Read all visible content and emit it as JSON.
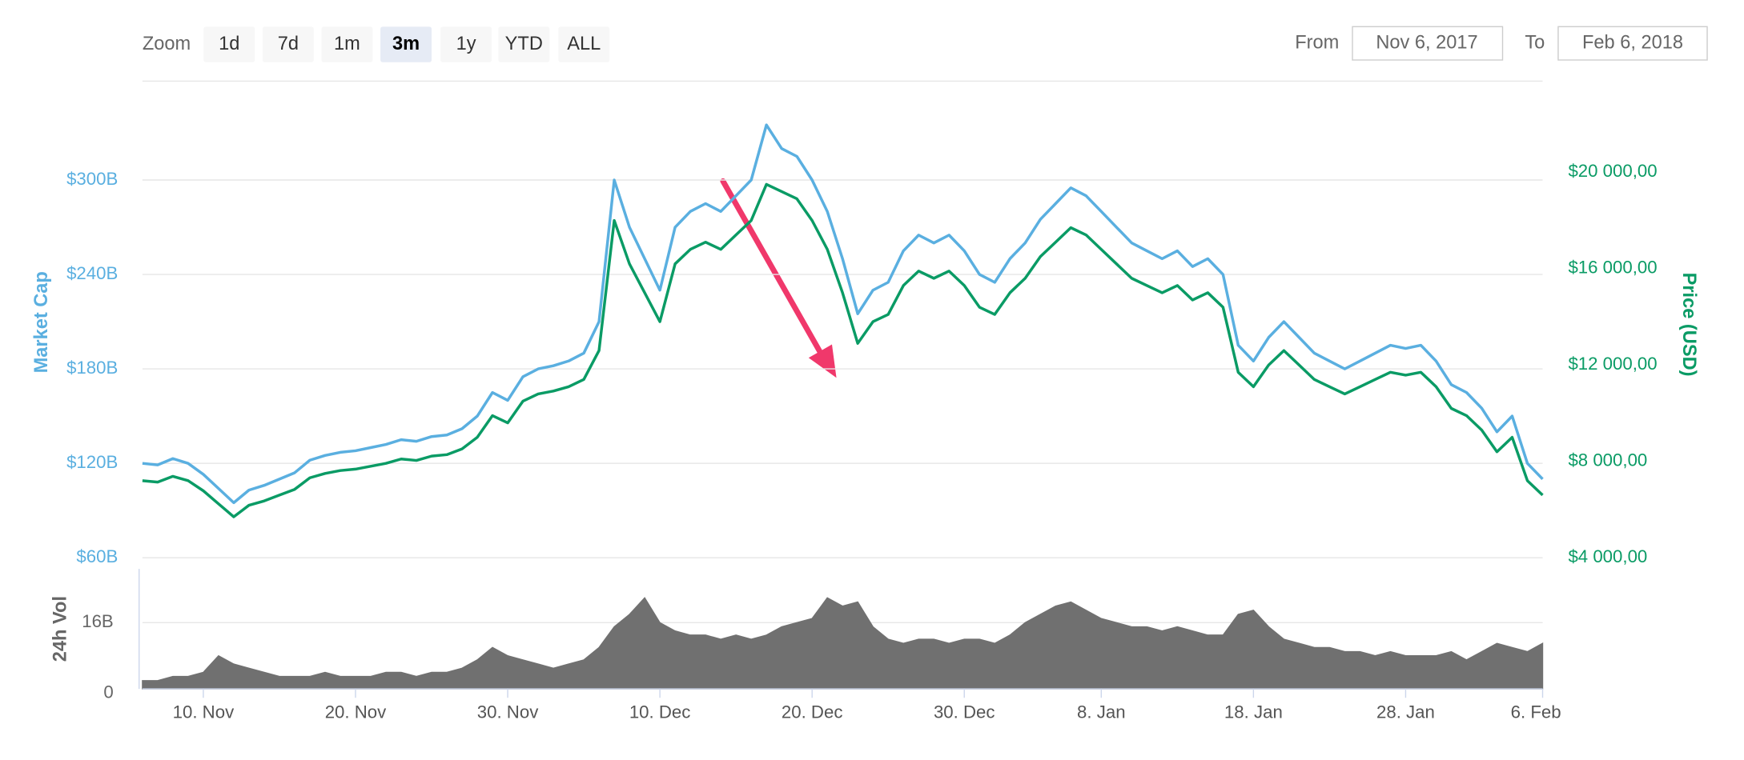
{
  "ui": {
    "zoom_label": "Zoom",
    "zoom_buttons": [
      "1d",
      "7d",
      "1m",
      "3m",
      "1y",
      "YTD",
      "ALL"
    ],
    "selected": 3,
    "from_label": "From",
    "from_value": "Nov 6, 2017",
    "to_label": "To",
    "to_value": "Feb 6, 2018"
  },
  "chart_data": {
    "type": "line",
    "categories": [
      null,
      null,
      null,
      null,
      "10. Nov",
      null,
      null,
      null,
      null,
      null,
      null,
      null,
      null,
      null,
      "20. Nov",
      null,
      null,
      null,
      null,
      null,
      null,
      null,
      null,
      null,
      "30. Nov",
      null,
      null,
      null,
      null,
      null,
      null,
      null,
      null,
      null,
      "10. Dec",
      null,
      null,
      null,
      null,
      null,
      null,
      null,
      null,
      null,
      "20. Dec",
      null,
      null,
      null,
      null,
      null,
      null,
      null,
      null,
      null,
      "30. Dec",
      null,
      null,
      null,
      null,
      null,
      null,
      null,
      null,
      "8. Jan",
      null,
      null,
      null,
      null,
      null,
      null,
      null,
      null,
      null,
      "18. Jan",
      null,
      null,
      null,
      null,
      null,
      null,
      null,
      null,
      null,
      "28. Jan",
      null,
      null,
      null,
      null,
      null,
      null,
      null,
      null,
      "6. Feb"
    ],
    "series": [
      {
        "name": "Market Cap",
        "color": "#5aafe0",
        "axis": "y",
        "values": [
          120,
          119,
          123,
          120,
          113,
          104,
          95,
          103,
          106,
          110,
          114,
          122,
          125,
          127,
          128,
          130,
          132,
          135,
          134,
          137,
          138,
          142,
          150,
          165,
          160,
          175,
          180,
          182,
          185,
          190,
          210,
          300,
          270,
          250,
          230,
          270,
          280,
          285,
          280,
          290,
          300,
          335,
          320,
          315,
          300,
          280,
          250,
          215,
          230,
          235,
          255,
          265,
          260,
          265,
          255,
          240,
          235,
          250,
          260,
          275,
          285,
          295,
          290,
          280,
          270,
          260,
          255,
          250,
          255,
          245,
          250,
          240,
          195,
          185,
          200,
          210,
          200,
          190,
          185,
          180,
          185,
          190,
          195,
          193,
          195,
          185,
          170,
          165,
          155,
          140,
          150,
          120,
          110
        ]
      },
      {
        "name": "Price (USD)",
        "color": "#0a9b65",
        "axis": "y2",
        "values": [
          7200,
          7140,
          7380,
          7200,
          6780,
          6240,
          5700,
          6180,
          6360,
          6600,
          6840,
          7320,
          7500,
          7620,
          7680,
          7800,
          7920,
          8100,
          8040,
          8220,
          8280,
          8520,
          9000,
          9900,
          9600,
          10500,
          10800,
          10920,
          11100,
          11400,
          12600,
          18000,
          16200,
          15000,
          13800,
          16200,
          16800,
          17100,
          16800,
          17400,
          18000,
          19500,
          19200,
          18900,
          18000,
          16800,
          15000,
          12900,
          13800,
          14100,
          15300,
          15900,
          15600,
          15900,
          15300,
          14400,
          14100,
          15000,
          15600,
          16500,
          17100,
          17700,
          17400,
          16800,
          16200,
          15600,
          15300,
          15000,
          15300,
          14700,
          15000,
          14400,
          11700,
          11100,
          12000,
          12600,
          12000,
          11400,
          11100,
          10800,
          11100,
          11400,
          11700,
          11580,
          11700,
          11100,
          10200,
          9900,
          9300,
          8400,
          9000,
          7200,
          6600
        ]
      },
      {
        "name": "24h Vol",
        "color": "#707070",
        "axis": "y3",
        "values": [
          2,
          2,
          3,
          3,
          4,
          8,
          6,
          5,
          4,
          3,
          3,
          3,
          4,
          3,
          3,
          3,
          4,
          4,
          3,
          4,
          4,
          5,
          7,
          10,
          8,
          7,
          6,
          5,
          6,
          7,
          10,
          15,
          18,
          22,
          16,
          14,
          13,
          13,
          12,
          13,
          12,
          13,
          15,
          16,
          17,
          22,
          20,
          21,
          15,
          12,
          11,
          12,
          12,
          11,
          12,
          12,
          11,
          13,
          16,
          18,
          20,
          21,
          19,
          17,
          16,
          15,
          15,
          14,
          15,
          14,
          13,
          13,
          18,
          19,
          15,
          12,
          11,
          10,
          10,
          9,
          9,
          8,
          9,
          8,
          8,
          8,
          9,
          7,
          9,
          11,
          10,
          9,
          11
        ]
      }
    ],
    "ylim": [
      60,
      360
    ],
    "yticks": [
      {
        "value": 60,
        "label": "$60B"
      },
      {
        "value": 120,
        "label": "$120B"
      },
      {
        "value": 180,
        "label": "$180B"
      },
      {
        "value": 240,
        "label": "$240B"
      },
      {
        "value": 300,
        "label": "$300B"
      }
    ],
    "y2lim": [
      4000,
      23600
    ],
    "y2ticks": [
      {
        "value": 4000,
        "label": "$4 000,00"
      },
      {
        "value": 8000,
        "label": "$8 000,00"
      },
      {
        "value": 12000,
        "label": "$12 000,00"
      },
      {
        "value": 16000,
        "label": "$16 000,00"
      },
      {
        "value": 20000,
        "label": "$20 000,00"
      }
    ],
    "y3lim": [
      0,
      29
    ],
    "y3ticks": [
      0,
      {
        "value": 16,
        "label": "16B"
      }
    ],
    "grid": true
  }
}
